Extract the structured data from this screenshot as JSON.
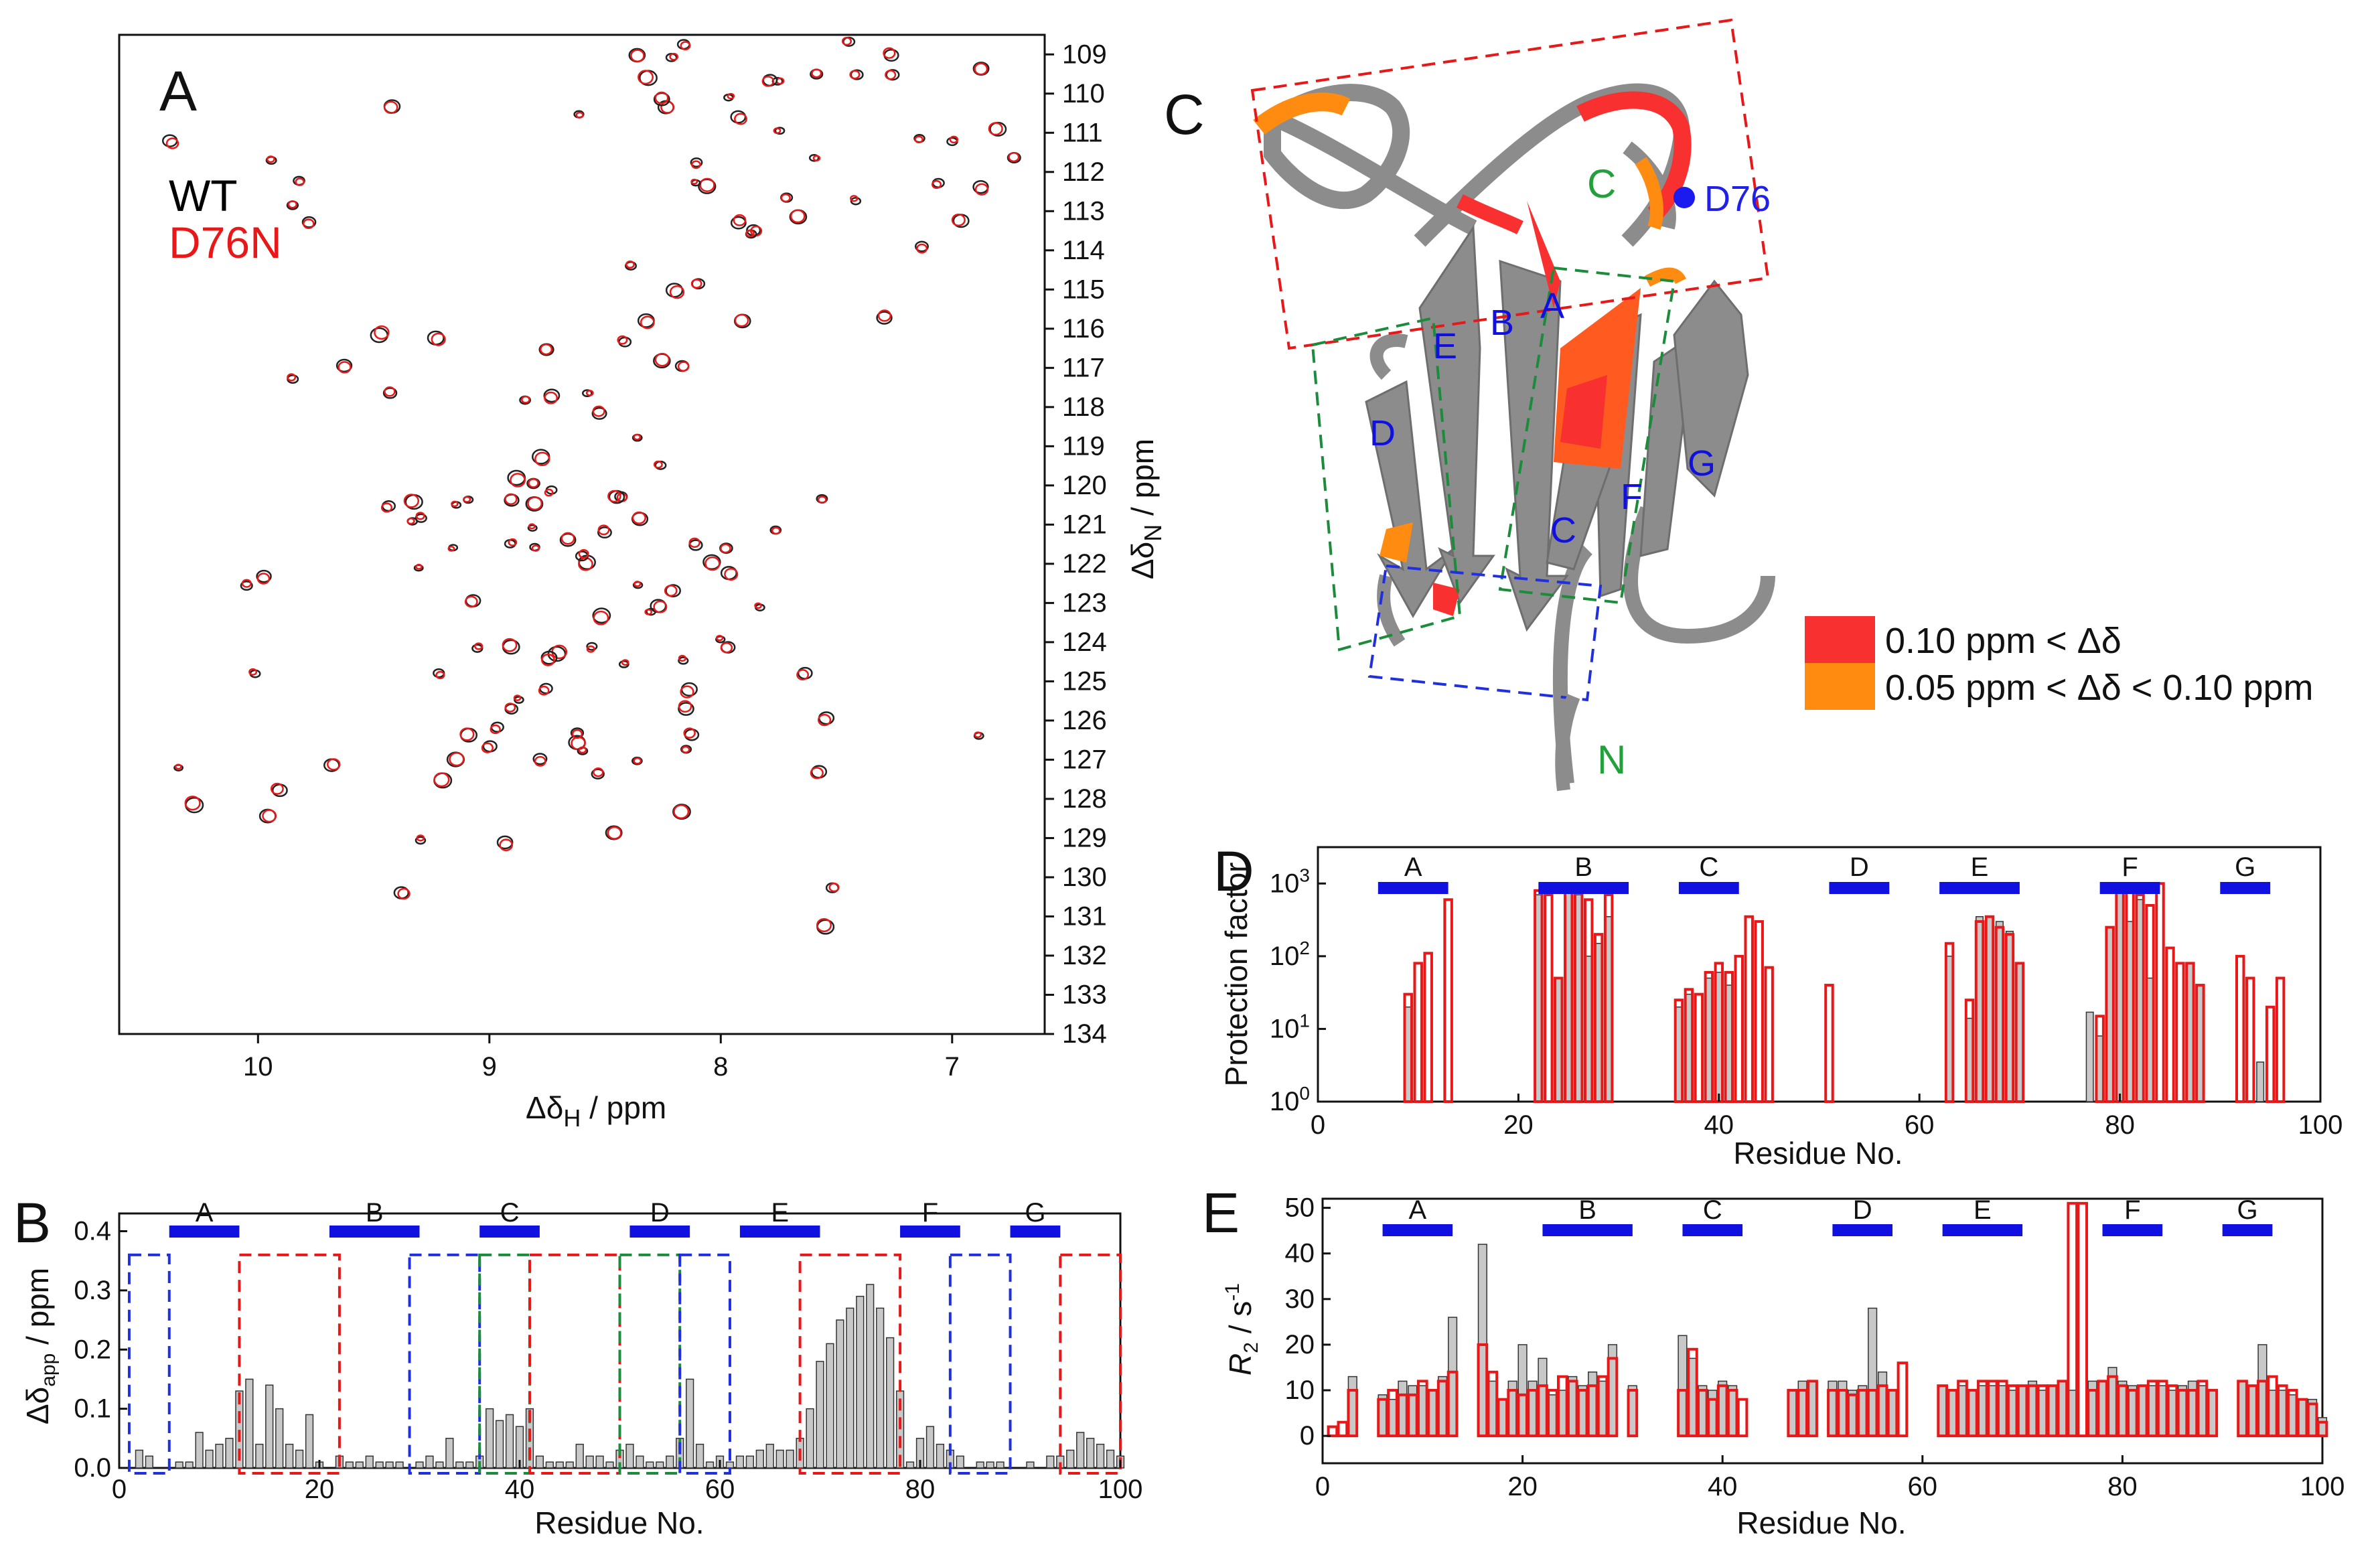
{
  "panels": {
    "A": {
      "label": "A",
      "legend": [
        {
          "name": "WT",
          "color": "#000000"
        },
        {
          "name": "D76N",
          "color": "#e81818"
        }
      ],
      "xaxis": {
        "label": "Δδ",
        "sub": "H",
        "unit": " / ppm",
        "range": [
          10.6,
          6.6
        ],
        "ticks": [
          10,
          9,
          8,
          7
        ]
      },
      "yaxis": {
        "label": "Δδ",
        "sub": "N",
        "unit": " / ppm",
        "range": [
          108.5,
          134
        ],
        "ticks": [
          109,
          110,
          111,
          112,
          113,
          114,
          115,
          116,
          117,
          118,
          119,
          120,
          121,
          122,
          123,
          124,
          125,
          126,
          127,
          128,
          129,
          130,
          131,
          132,
          133,
          134
        ]
      }
    },
    "B": {
      "label": "B",
      "xaxis": {
        "label": "Residue No.",
        "ticks": [
          0,
          20,
          40,
          60,
          80,
          100
        ],
        "range": [
          0,
          100
        ]
      },
      "yaxis": {
        "label": "Δδ",
        "sub": "app",
        "unit": " / ppm",
        "ticks": [
          0.0,
          0.1,
          0.2,
          0.3,
          0.4
        ],
        "tick_labels": [
          "0.0",
          "0.1",
          "0.2",
          "0.3",
          "0.4"
        ],
        "range": [
          0,
          0.43
        ]
      },
      "strands": [
        {
          "name": "A",
          "from": 5,
          "to": 12
        },
        {
          "name": "B",
          "from": 21,
          "to": 30
        },
        {
          "name": "C",
          "from": 36,
          "to": 42
        },
        {
          "name": "D",
          "from": 51,
          "to": 57
        },
        {
          "name": "E",
          "from": 62,
          "to": 70
        },
        {
          "name": "F",
          "from": 78,
          "to": 84
        },
        {
          "name": "G",
          "from": 89,
          "to": 94
        }
      ],
      "boxes": [
        {
          "from": 1,
          "to": 5,
          "color": "blue"
        },
        {
          "from": 12,
          "to": 22,
          "color": "red"
        },
        {
          "from": 29,
          "to": 36,
          "color": "blue"
        },
        {
          "from": 36,
          "to": 41,
          "color": "green"
        },
        {
          "from": 41,
          "to": 50,
          "color": "red"
        },
        {
          "from": 50,
          "to": 56,
          "color": "green"
        },
        {
          "from": 56,
          "to": 61,
          "color": "blue"
        },
        {
          "from": 68,
          "to": 78,
          "color": "red"
        },
        {
          "from": 83,
          "to": 89,
          "color": "blue"
        },
        {
          "from": 94,
          "to": 100,
          "color": "red"
        }
      ]
    },
    "C": {
      "label": "C",
      "strand_labels": [
        "A",
        "B",
        "C",
        "D",
        "E",
        "F",
        "G"
      ],
      "terminals": {
        "c": "C",
        "n": "N"
      },
      "site": "D76",
      "legend": [
        {
          "text": "0.10 ppm < Δδ",
          "color": "#f83030"
        },
        {
          "text": "0.05 ppm < Δδ < 0.10 ppm",
          "color": "#ff8c10"
        }
      ]
    },
    "D": {
      "label": "D",
      "xaxis": {
        "label": "Residue No.",
        "ticks": [
          0,
          20,
          40,
          60,
          80,
          100
        ],
        "range": [
          0,
          100
        ]
      },
      "yaxis": {
        "label": "Protection factor",
        "tick_base": "10",
        "tick_exps": [
          "0",
          "1",
          "2",
          "3"
        ],
        "range_log": [
          0,
          3.5
        ]
      },
      "strands": [
        {
          "name": "A",
          "from": 6,
          "to": 13
        },
        {
          "name": "B",
          "from": 22,
          "to": 31
        },
        {
          "name": "C",
          "from": 36,
          "to": 42
        },
        {
          "name": "D",
          "from": 51,
          "to": 57
        },
        {
          "name": "E",
          "from": 62,
          "to": 70
        },
        {
          "name": "F",
          "from": 78,
          "to": 84
        },
        {
          "name": "G",
          "from": 90,
          "to": 95
        }
      ]
    },
    "E": {
      "label": "E",
      "xaxis": {
        "label": "Residue No.",
        "ticks": [
          0,
          20,
          40,
          60,
          80,
          100
        ],
        "range": [
          0,
          100
        ]
      },
      "yaxis": {
        "label": "R",
        "sub": "2",
        "unit": " / s",
        "sup": "-1",
        "ticks": [
          0,
          10,
          20,
          30,
          40,
          50
        ],
        "range": [
          -6,
          52
        ]
      },
      "strands": [
        {
          "name": "A",
          "from": 6,
          "to": 13
        },
        {
          "name": "B",
          "from": 22,
          "to": 31
        },
        {
          "name": "C",
          "from": 36,
          "to": 42
        },
        {
          "name": "D",
          "from": 51,
          "to": 57
        },
        {
          "name": "E",
          "from": 62,
          "to": 70
        },
        {
          "name": "F",
          "from": 78,
          "to": 84
        },
        {
          "name": "G",
          "from": 90,
          "to": 95
        }
      ]
    }
  },
  "chart_data": [
    {
      "type": "bar",
      "title": "B",
      "xlabel": "Residue No.",
      "ylabel": "Δδapp / ppm",
      "ylim": [
        0,
        0.43
      ],
      "x": [
        1,
        2,
        3,
        4,
        5,
        6,
        7,
        8,
        9,
        10,
        11,
        12,
        13,
        14,
        15,
        16,
        17,
        18,
        19,
        20,
        21,
        22,
        23,
        24,
        25,
        26,
        27,
        28,
        29,
        30,
        31,
        32,
        33,
        34,
        35,
        36,
        37,
        38,
        39,
        40,
        41,
        42,
        43,
        44,
        45,
        46,
        47,
        48,
        49,
        50,
        51,
        52,
        53,
        54,
        55,
        56,
        57,
        58,
        59,
        60,
        61,
        62,
        63,
        64,
        65,
        66,
        67,
        68,
        69,
        70,
        71,
        72,
        73,
        74,
        75,
        76,
        77,
        78,
        79,
        80,
        81,
        82,
        83,
        84,
        85,
        86,
        87,
        88,
        89,
        90,
        91,
        92,
        93,
        94,
        95,
        96,
        97,
        98,
        99,
        100
      ],
      "values": [
        0,
        0.03,
        0.02,
        0,
        0,
        0.01,
        0.01,
        0.06,
        0.03,
        0.04,
        0.05,
        0.13,
        0.15,
        0.04,
        0.14,
        0.1,
        0.04,
        0.03,
        0.09,
        0.01,
        0,
        0.02,
        0.01,
        0.01,
        0.02,
        0.01,
        0.01,
        0.01,
        0,
        0.01,
        0.02,
        0.01,
        0.05,
        0.01,
        0.01,
        0.02,
        0.1,
        0.08,
        0.09,
        0.07,
        0.1,
        0.02,
        0.01,
        0.01,
        0.01,
        0.04,
        0.02,
        0.02,
        0.01,
        0.03,
        0.04,
        0.02,
        0.01,
        0.01,
        0.02,
        0.05,
        0.15,
        0.04,
        0.01,
        0.02,
        0.01,
        0.02,
        0.02,
        0.03,
        0.04,
        0.03,
        0.03,
        0.05,
        0.1,
        0.18,
        0.21,
        0.25,
        0.27,
        0.29,
        0.31,
        0.27,
        0.22,
        0.13,
        0.01,
        0.05,
        0.07,
        0.04,
        0.03,
        0.02,
        0,
        0.01,
        0.01,
        0.01,
        0,
        0,
        0.01,
        0,
        0.02,
        0.02,
        0.03,
        0.06,
        0.05,
        0.04,
        0.03,
        0.02
      ]
    },
    {
      "type": "bar",
      "title": "D",
      "xlabel": "Residue No.",
      "ylabel": "Protection factor",
      "yscale": "log",
      "ylim": [
        1,
        3162
      ],
      "x": [
        9,
        10,
        11,
        12,
        13,
        22,
        23,
        24,
        25,
        26,
        27,
        28,
        29,
        36,
        37,
        38,
        39,
        40,
        41,
        42,
        43,
        44,
        45,
        51,
        63,
        64,
        65,
        66,
        67,
        68,
        69,
        70,
        77,
        78,
        79,
        80,
        81,
        82,
        83,
        84,
        85,
        86,
        87,
        88,
        92,
        93,
        94,
        95,
        96
      ],
      "wt": [
        20,
        null,
        null,
        null,
        null,
        700,
        null,
        50,
        800,
        700,
        100,
        150,
        350,
        20,
        30,
        null,
        50,
        60,
        40,
        null,
        null,
        null,
        null,
        null,
        100,
        null,
        14,
        350,
        350,
        300,
        220,
        80,
        17,
        8,
        250,
        800,
        300,
        600,
        50,
        null,
        null,
        null,
        80,
        40,
        null,
        null,
        3.5,
        null,
        null
      ],
      "d76n": [
        30,
        80,
        110,
        null,
        600,
        800,
        700,
        50,
        900,
        800,
        600,
        200,
        700,
        25,
        35,
        30,
        60,
        80,
        60,
        100,
        350,
        300,
        70,
        40,
        150,
        null,
        25,
        300,
        350,
        250,
        200,
        80,
        null,
        15,
        250,
        900,
        800,
        700,
        500,
        1000,
        130,
        80,
        80,
        40,
        100,
        50,
        null,
        20,
        50
      ]
    },
    {
      "type": "bar",
      "title": "E",
      "xlabel": "Residue No.",
      "ylabel": "R2 / s-1",
      "ylim": [
        -6,
        52
      ],
      "x": [
        1,
        2,
        3,
        4,
        5,
        6,
        7,
        8,
        9,
        10,
        11,
        12,
        13,
        14,
        15,
        16,
        17,
        18,
        19,
        20,
        21,
        22,
        23,
        24,
        25,
        26,
        27,
        28,
        29,
        30,
        31,
        32,
        33,
        34,
        35,
        36,
        37,
        38,
        39,
        40,
        41,
        42,
        43,
        44,
        45,
        46,
        47,
        48,
        49,
        50,
        51,
        52,
        53,
        54,
        55,
        56,
        57,
        58,
        59,
        60,
        61,
        62,
        63,
        64,
        65,
        66,
        67,
        68,
        69,
        70,
        71,
        72,
        73,
        74,
        75,
        76,
        77,
        78,
        79,
        80,
        81,
        82,
        83,
        84,
        85,
        86,
        87,
        88,
        89,
        90,
        91,
        92,
        93,
        94,
        95,
        96,
        97,
        98,
        99,
        100
      ],
      "wt": [
        0,
        0,
        13,
        0,
        0,
        9,
        8,
        12,
        11,
        11,
        10,
        13,
        26,
        0,
        0,
        42,
        12,
        8,
        12,
        20,
        12,
        17,
        9,
        10,
        13,
        11,
        14,
        12,
        20,
        0,
        11,
        0,
        0,
        0,
        0,
        22,
        17,
        11,
        10,
        12,
        11,
        0,
        0,
        0,
        0,
        0,
        10,
        12,
        12,
        0,
        12,
        12,
        10,
        11,
        28,
        14,
        10,
        0,
        0,
        0,
        0,
        11,
        10,
        11,
        10,
        11,
        11,
        11,
        10,
        11,
        12,
        10,
        11,
        12,
        10,
        0,
        12,
        12,
        15,
        12,
        11,
        11,
        11,
        11,
        10,
        11,
        12,
        11,
        10,
        0,
        0,
        12,
        11,
        20,
        10,
        10,
        9,
        8,
        8,
        4
      ],
      "d76n": [
        2,
        3,
        10,
        0,
        0,
        8,
        10,
        9,
        9,
        12,
        10,
        12,
        14,
        0,
        0,
        20,
        14,
        8,
        10,
        9,
        10,
        11,
        10,
        13,
        12,
        10,
        11,
        13,
        17,
        0,
        10,
        0,
        0,
        0,
        0,
        10,
        19,
        10,
        8,
        11,
        10,
        8,
        0,
        0,
        0,
        0,
        10,
        10,
        12,
        0,
        10,
        10,
        9,
        10,
        10,
        11,
        10,
        16,
        0,
        0,
        0,
        11,
        10,
        12,
        10,
        12,
        12,
        12,
        11,
        11,
        11,
        11,
        11,
        12,
        51,
        51,
        10,
        12,
        13,
        11,
        10,
        11,
        12,
        12,
        11,
        10,
        10,
        12,
        10,
        0,
        0,
        12,
        11,
        12,
        13,
        11,
        10,
        8,
        7,
        3
      ]
    }
  ]
}
